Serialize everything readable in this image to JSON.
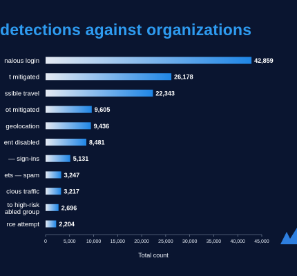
{
  "chart_data": {
    "type": "bar",
    "orientation": "horizontal",
    "title": "detections against organizations",
    "xlabel": "Total count",
    "ylabel": "",
    "xlim": [
      0,
      45000
    ],
    "xticks": [
      "0",
      "5,000",
      "10,000",
      "15,000",
      "20,000",
      "25,000",
      "30,000",
      "35,000",
      "40,000",
      "45,000"
    ],
    "grid": false,
    "legend": "none",
    "categories": [
      "nalous login",
      "t mitigated",
      "ssible travel",
      "ot mitigated",
      "geolocation",
      "ent disabled",
      "— sign-ins",
      "ets — spam",
      "cious traffic",
      "to high-risk\nabled group",
      "rce attempt"
    ],
    "values": [
      42859,
      26178,
      22343,
      9605,
      9436,
      8481,
      5131,
      3247,
      3217,
      2696,
      2204
    ],
    "value_labels": [
      "42,859",
      "26,178",
      "22,343",
      "9,605",
      "9,436",
      "8,481",
      "5,131",
      "3,247",
      "3,217",
      "2,696",
      "2,204"
    ],
    "colors": {
      "background": "#0a1530",
      "title": "#2e9bf0",
      "bar_start": "#e4e9f2",
      "bar_end": "#1f86e6"
    }
  }
}
